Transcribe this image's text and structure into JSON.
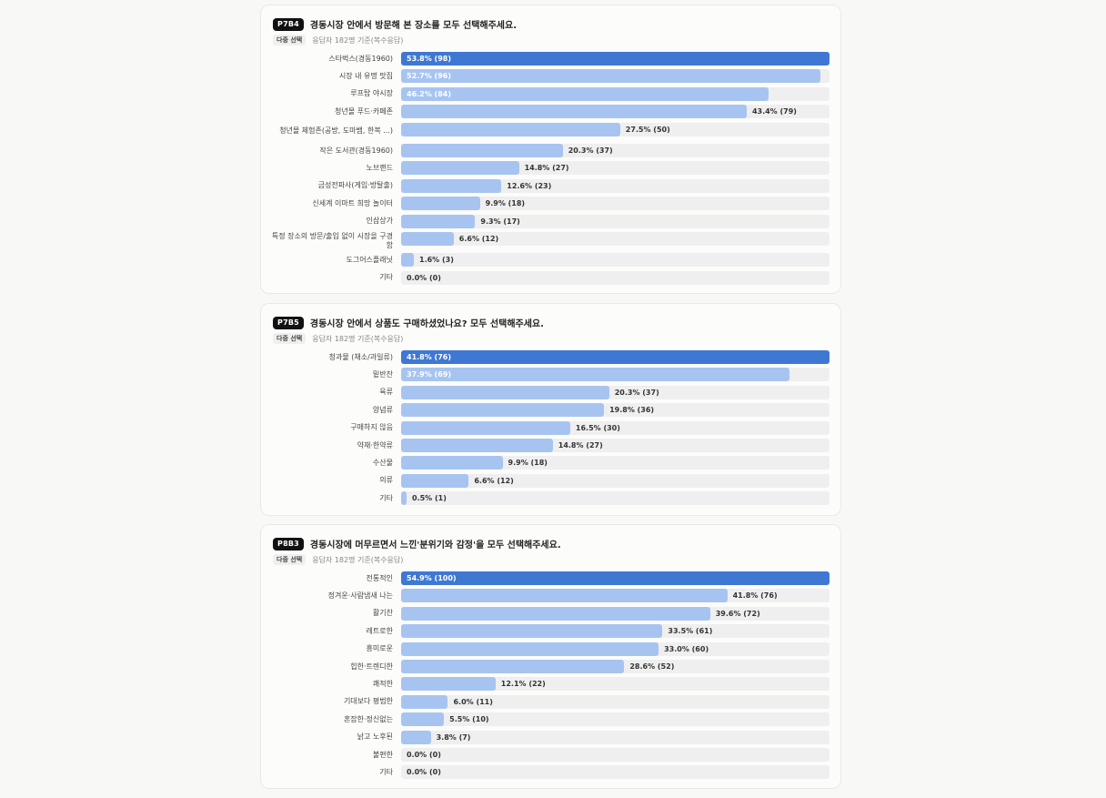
{
  "colors": {
    "top_bar": "#3f78d2",
    "bar": "#a7c4f1",
    "track": "#efefef"
  },
  "chart_data": [
    {
      "type": "bar",
      "orientation": "horizontal",
      "id": "P7B4",
      "question": "경동시장 안에서 방문해 본 장소를 모두 선택해주세요.",
      "tag": "다중 선택",
      "meta": "응답자 182명 기준(복수응답)",
      "categories": [
        "스타벅스(경동1960)",
        "시장 내 유명 맛집",
        "루프탑 야시장",
        "청년몰 푸드·카페존",
        "청년몰 체험존(공방, 도마뱀, 한복 ...)",
        "작은 도서관(경동1960)",
        "노브랜드",
        "금성전파사(게임·방탈출)",
        "신세계 이마트 희망 놀이터",
        "인삼상가",
        "특정 장소의 방문/출입 없이 시장을 구경함",
        "도그어스플래닛",
        "기타"
      ],
      "values": [
        53.8,
        52.7,
        46.2,
        43.4,
        27.5,
        20.3,
        14.8,
        12.6,
        9.9,
        9.3,
        6.6,
        1.6,
        0.0
      ],
      "counts": [
        98,
        96,
        84,
        79,
        50,
        37,
        27,
        23,
        18,
        17,
        12,
        3,
        0
      ],
      "labels": [
        "53.8% (98)",
        "52.7% (96)",
        "46.2% (84)",
        "43.4% (79)",
        "27.5% (50)",
        "20.3% (37)",
        "14.8% (27)",
        "12.6% (23)",
        "9.9% (18)",
        "9.3% (17)",
        "6.6% (12)",
        "1.6% (3)",
        "0.0% (0)"
      ]
    },
    {
      "type": "bar",
      "orientation": "horizontal",
      "id": "P7B5",
      "question": "경동시장 안에서 상품도 구매하셨었나요? 모두 선택해주세요.",
      "tag": "다중 선택",
      "meta": "응답자 182명 기준(복수응답)",
      "categories": [
        "청과물 (채소/과일류)",
        "밑반찬",
        "육류",
        "양념류",
        "구매하지 않음",
        "약재·한약류",
        "수산물",
        "의류",
        "기타"
      ],
      "values": [
        41.8,
        37.9,
        20.3,
        19.8,
        16.5,
        14.8,
        9.9,
        6.6,
        0.5
      ],
      "counts": [
        76,
        69,
        37,
        36,
        30,
        27,
        18,
        12,
        1
      ],
      "labels": [
        "41.8% (76)",
        "37.9% (69)",
        "20.3% (37)",
        "19.8% (36)",
        "16.5% (30)",
        "14.8% (27)",
        "9.9% (18)",
        "6.6% (12)",
        "0.5% (1)"
      ]
    },
    {
      "type": "bar",
      "orientation": "horizontal",
      "id": "P8B3",
      "question": "경동시장에 머무르면서 느낀'분위기와 감정'을 모두 선택해주세요.",
      "tag": "다중 선택",
      "meta": "응답자 182명 기준(복수응답)",
      "categories": [
        "전통적인",
        "정겨운·사람냄새 나는",
        "활기찬",
        "레트로한",
        "흥미로운",
        "힙한·트렌디한",
        "쾌적한",
        "기대보다 평범한",
        "혼잡한·정신없는",
        "낡고 노후된",
        "불편한",
        "기타"
      ],
      "values": [
        54.9,
        41.8,
        39.6,
        33.5,
        33.0,
        28.6,
        12.1,
        6.0,
        5.5,
        3.8,
        0.0,
        0.0
      ],
      "counts": [
        100,
        76,
        72,
        61,
        60,
        52,
        22,
        11,
        10,
        7,
        0,
        0
      ],
      "labels": [
        "54.9% (100)",
        "41.8% (76)",
        "39.6% (72)",
        "33.5% (61)",
        "33.0% (60)",
        "28.6% (52)",
        "12.1% (22)",
        "6.0% (11)",
        "5.5% (10)",
        "3.8% (7)",
        "0.0% (0)",
        "0.0% (0)"
      ]
    }
  ]
}
